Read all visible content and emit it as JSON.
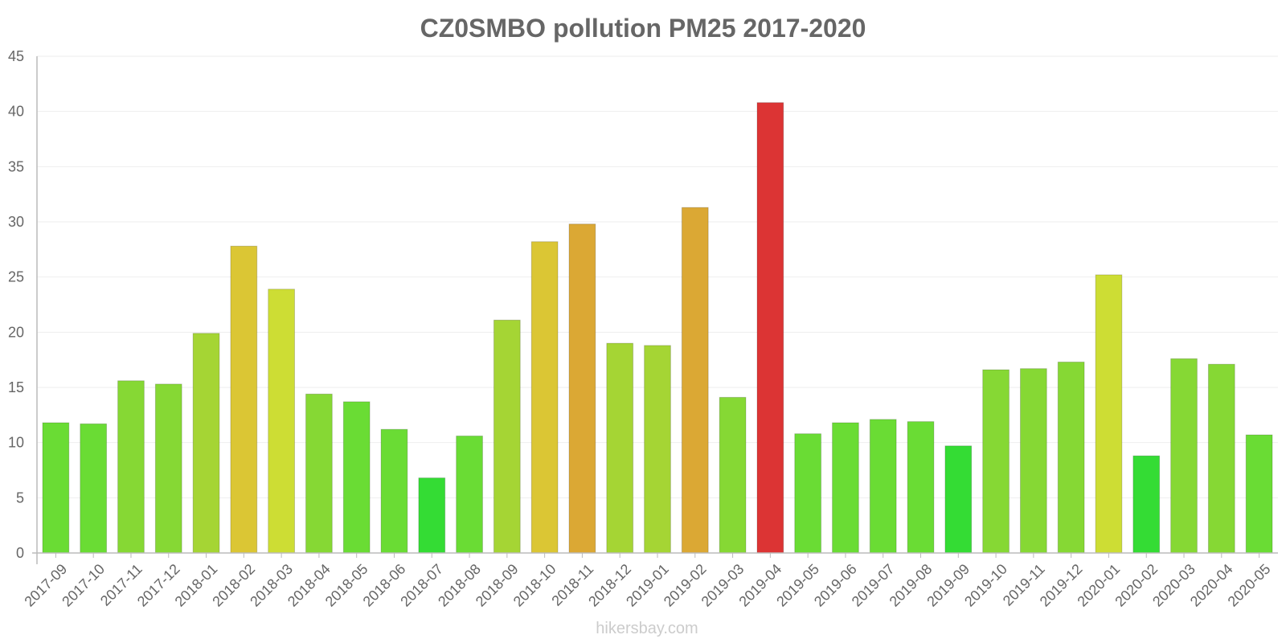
{
  "chart_data": {
    "type": "bar",
    "title": "CZ0SMBO pollution PM25 2017-2020",
    "xlabel": "",
    "ylabel": "",
    "ylim": [
      0,
      45
    ],
    "yticks": [
      "0",
      "5",
      "10",
      "15",
      "20",
      "25",
      "30",
      "35",
      "40",
      "45"
    ],
    "grid": true,
    "categories": [
      "2017-09",
      "2017-10",
      "2017-11",
      "2017-12",
      "2018-01",
      "2018-02",
      "2018-03",
      "2018-04",
      "2018-05",
      "2018-06",
      "2018-07",
      "2018-08",
      "2018-09",
      "2018-10",
      "2018-11",
      "2018-12",
      "2019-01",
      "2019-02",
      "2019-03",
      "2019-04",
      "2019-05",
      "2019-06",
      "2019-07",
      "2019-08",
      "2019-09",
      "2019-10",
      "2019-11",
      "2019-12",
      "2020-01",
      "2020-02",
      "2020-03",
      "2020-04",
      "2020-05"
    ],
    "values": [
      11.8,
      11.7,
      15.6,
      15.3,
      19.9,
      27.8,
      23.9,
      14.4,
      13.7,
      11.2,
      6.8,
      10.6,
      21.1,
      28.2,
      29.8,
      19.0,
      18.8,
      31.3,
      14.1,
      40.8,
      10.8,
      11.8,
      12.1,
      11.9,
      9.7,
      16.6,
      16.7,
      17.3,
      25.2,
      8.8,
      17.6,
      17.1,
      10.7
    ],
    "colors": [
      "#6adc34",
      "#6adc34",
      "#86d834",
      "#86d834",
      "#a5d534",
      "#dbc634",
      "#cddd34",
      "#86d834",
      "#6adc34",
      "#6adc34",
      "#34dc34",
      "#6adc34",
      "#a5d534",
      "#dbc634",
      "#dba834",
      "#a5d534",
      "#a5d534",
      "#dba834",
      "#86d834",
      "#dc3434",
      "#6adc34",
      "#6adc34",
      "#6adc34",
      "#6adc34",
      "#34dc34",
      "#86d834",
      "#86d834",
      "#86d834",
      "#cddd34",
      "#34dc34",
      "#86d834",
      "#86d834",
      "#6adc34"
    ]
  },
  "watermark": "hikersbay.com"
}
